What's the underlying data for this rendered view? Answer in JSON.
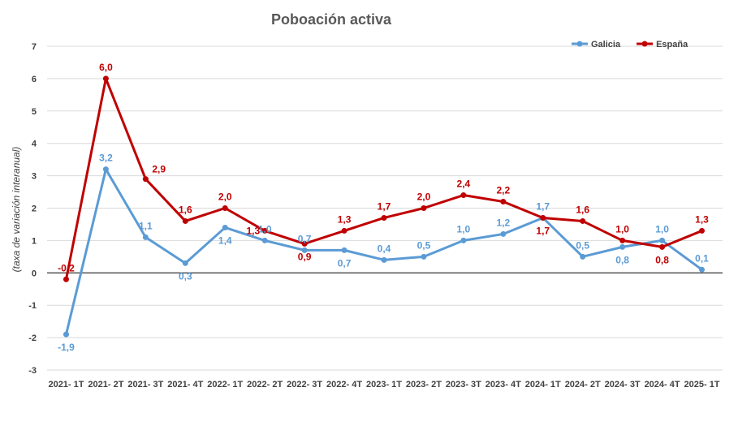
{
  "chart_data": {
    "type": "line",
    "title": "Poboación activa",
    "ylabel": "(taxa de variación interanual)",
    "xlabel": "",
    "ylim": [
      -3,
      7
    ],
    "yticks": [
      "-3",
      "-2",
      "-1",
      "0",
      "1",
      "2",
      "3",
      "4",
      "5",
      "6",
      "7"
    ],
    "grid": "horizontal",
    "legend_position": "top-right",
    "categories": [
      "2021- 1T",
      "2021- 2T",
      "2021- 3T",
      "2021- 4T",
      "2022- 1T",
      "2022- 2T",
      "2022- 3T",
      "2022- 4T",
      "2023- 1T",
      "2023- 2T",
      "2023- 3T",
      "2023- 4T",
      "2024- 1T",
      "2024- 2T",
      "2024- 3T",
      "2024- 4T",
      "2025- 1T"
    ],
    "series": [
      {
        "name": "Galicia",
        "color": "#5b9bd5",
        "values": [
          -1.9,
          3.2,
          1.1,
          0.3,
          1.4,
          1.0,
          0.7,
          0.7,
          0.4,
          0.5,
          1.0,
          1.2,
          1.7,
          0.5,
          0.8,
          1.0,
          0.1
        ],
        "labels": [
          "-1,9",
          "3,2",
          "1,1",
          "0,3",
          "1,4",
          "1,0",
          "0,7",
          "0,7",
          "0,4",
          "0,5",
          "1,0",
          "1,2",
          "1,7",
          "0,5",
          "0,8",
          "1,0",
          "0,1"
        ]
      },
      {
        "name": "España",
        "color": "#c00000",
        "values": [
          -0.2,
          6.0,
          2.9,
          1.6,
          2.0,
          1.3,
          0.9,
          1.3,
          1.7,
          2.0,
          2.4,
          2.2,
          1.7,
          1.6,
          1.0,
          0.8,
          1.3
        ],
        "labels": [
          "-0,2",
          "6,0",
          "2,9",
          "1,6",
          "2,0",
          "1,3",
          "0,9",
          "1,3",
          "1,7",
          "2,0",
          "2,4",
          "2,2",
          "1,7",
          "1,6",
          "1,0",
          "0,8",
          "1,3"
        ]
      }
    ]
  }
}
